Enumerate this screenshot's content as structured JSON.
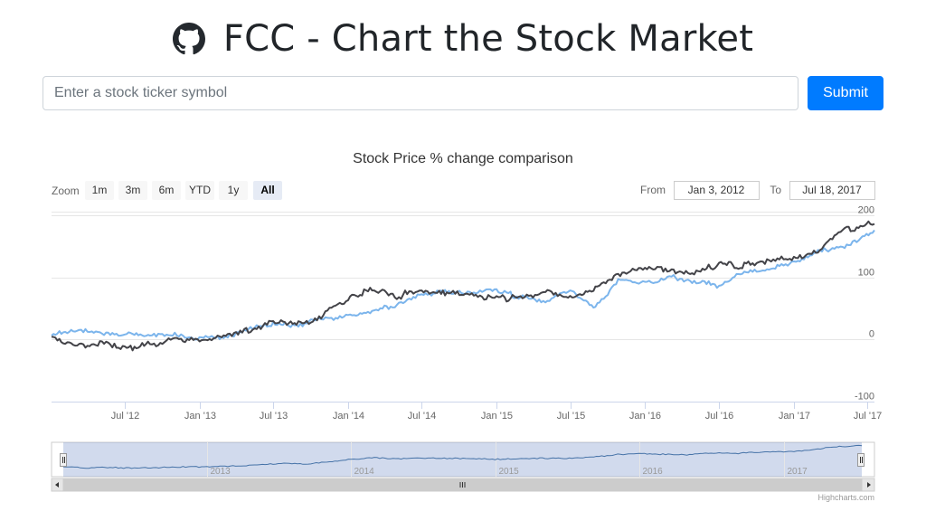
{
  "header": {
    "title": "FCC - Chart the Stock Market",
    "icon": "github-icon"
  },
  "search": {
    "placeholder": "Enter a stock ticker symbol",
    "value": "",
    "submit_label": "Submit"
  },
  "range_selector": {
    "zoom_label": "Zoom",
    "buttons": [
      "1m",
      "3m",
      "6m",
      "YTD",
      "1y",
      "All"
    ],
    "selected": "All",
    "from_label": "From",
    "from_value": "Jan 3, 2012",
    "to_label": "To",
    "to_value": "Jul 18, 2017"
  },
  "navigator": {
    "year_labels": [
      "2013",
      "2014",
      "2015",
      "2016",
      "2017"
    ]
  },
  "credits": "Highcharts.com",
  "colors": {
    "series_dark": "#434348",
    "series_light": "#7cb5ec",
    "navigator_fill": "#ccd6eb",
    "button_primary": "#007bff"
  },
  "chart_data": {
    "type": "line",
    "title": "Stock Price % change comparison",
    "x_tick_labels": [
      "Jul '12",
      "Jan '13",
      "Jul '13",
      "Jan '14",
      "Jul '14",
      "Jan '15",
      "Jul '15",
      "Jan '16",
      "Jul '16",
      "Jan '17",
      "Jul '17"
    ],
    "x_ticks": [
      "2012-07-01",
      "2013-01-01",
      "2013-07-01",
      "2014-01-01",
      "2014-07-01",
      "2015-01-01",
      "2015-07-01",
      "2016-01-01",
      "2016-07-01",
      "2017-01-01",
      "2017-07-01"
    ],
    "xlim": [
      "2012-01-03",
      "2017-07-18"
    ],
    "y_ticks": [
      -100,
      0,
      100,
      200
    ],
    "ylim": [
      -100,
      200
    ],
    "grid": true,
    "series": [
      {
        "color": "#434348",
        "x": [
          "2012-01-03",
          "2012-03-01",
          "2012-05-01",
          "2012-07-01",
          "2012-09-01",
          "2012-11-01",
          "2013-01-01",
          "2013-03-01",
          "2013-05-01",
          "2013-07-01",
          "2013-09-01",
          "2013-11-01",
          "2014-01-01",
          "2014-03-01",
          "2014-05-01",
          "2014-07-01",
          "2014-09-01",
          "2014-11-01",
          "2015-01-01",
          "2015-03-01",
          "2015-05-01",
          "2015-07-01",
          "2015-09-01",
          "2015-11-01",
          "2016-01-01",
          "2016-03-01",
          "2016-05-01",
          "2016-07-01",
          "2016-09-01",
          "2016-11-01",
          "2017-01-01",
          "2017-03-01",
          "2017-05-01",
          "2017-07-18"
        ],
        "y": [
          0,
          -10,
          -6,
          -14,
          -8,
          0,
          -2,
          6,
          14,
          28,
          24,
          40,
          66,
          80,
          70,
          78,
          75,
          72,
          66,
          70,
          76,
          72,
          82,
          107,
          116,
          110,
          106,
          122,
          118,
          128,
          132,
          142,
          176,
          186
        ]
      },
      {
        "color": "#7cb5ec",
        "x": [
          "2012-01-03",
          "2012-03-01",
          "2012-05-01",
          "2012-07-01",
          "2012-09-01",
          "2012-11-01",
          "2013-01-01",
          "2013-03-01",
          "2013-05-01",
          "2013-07-01",
          "2013-09-01",
          "2013-11-01",
          "2014-01-01",
          "2014-03-01",
          "2014-05-01",
          "2014-07-01",
          "2014-09-01",
          "2014-11-01",
          "2015-01-01",
          "2015-03-01",
          "2015-05-01",
          "2015-07-01",
          "2015-09-01",
          "2015-11-01",
          "2016-01-01",
          "2016-03-01",
          "2016-05-01",
          "2016-07-01",
          "2016-09-01",
          "2016-11-01",
          "2017-01-01",
          "2017-03-01",
          "2017-05-01",
          "2017-07-18"
        ],
        "y": [
          6,
          16,
          10,
          10,
          8,
          6,
          2,
          4,
          18,
          24,
          24,
          34,
          38,
          46,
          56,
          72,
          78,
          76,
          80,
          68,
          60,
          78,
          52,
          96,
          90,
          100,
          94,
          86,
          110,
          114,
          122,
          142,
          148,
          176
        ]
      }
    ]
  }
}
